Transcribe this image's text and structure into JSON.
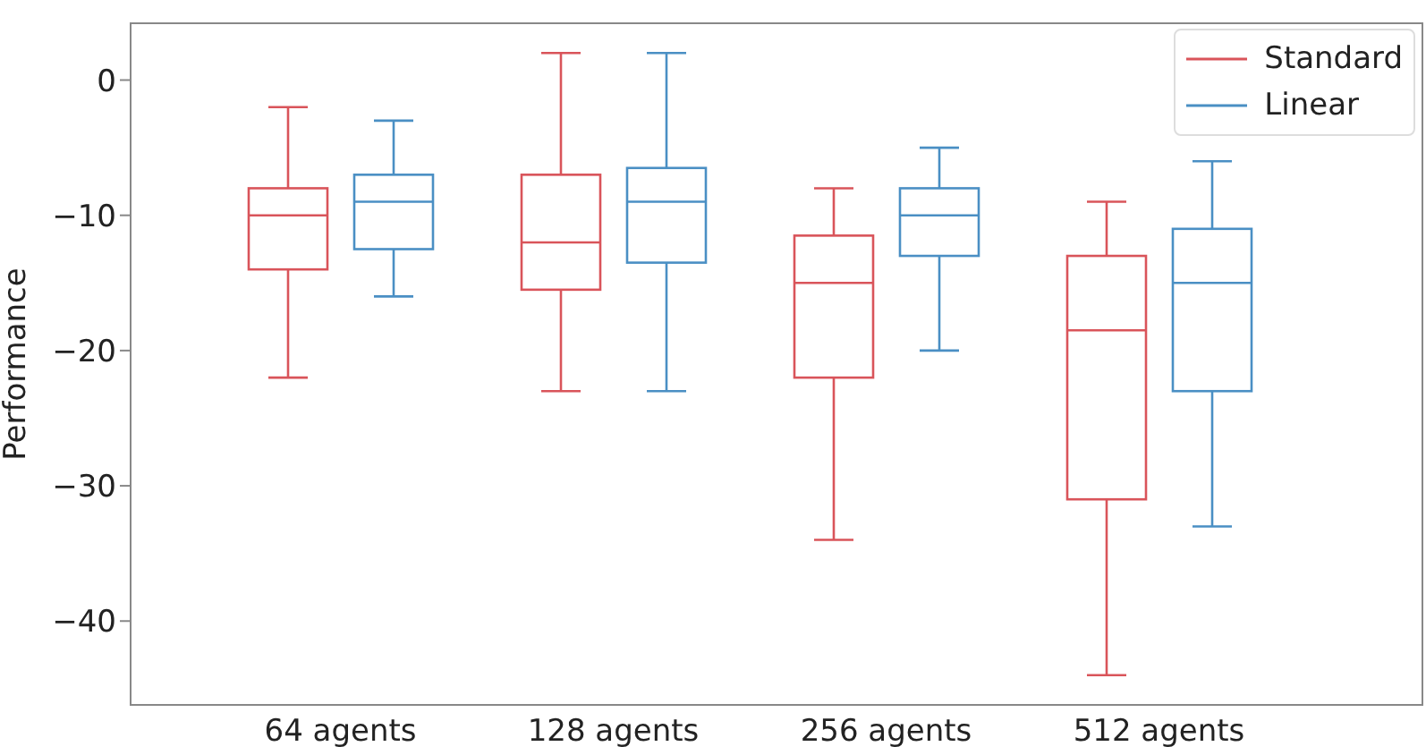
{
  "chart_data": {
    "type": "box",
    "ylabel": "Performance",
    "categories": [
      "64 agents",
      "128 agents",
      "256 agents",
      "512 agents"
    ],
    "ylim": [
      -46.2,
      4.2
    ],
    "yticks": [
      {
        "value": 0,
        "label": "0"
      },
      {
        "value": -10,
        "label": "−10"
      },
      {
        "value": -20,
        "label": "−20"
      },
      {
        "value": -30,
        "label": "−30"
      },
      {
        "value": -40,
        "label": "−40"
      }
    ],
    "legend": "top right",
    "series": [
      {
        "name": "Standard",
        "color": "#d9545a",
        "boxes": [
          {
            "low": -22,
            "q1": -14,
            "median": -10,
            "q3": -8,
            "high": -2
          },
          {
            "low": -23,
            "q1": -15.5,
            "median": -12,
            "q3": -7,
            "high": 2
          },
          {
            "low": -34,
            "q1": -22,
            "median": -15,
            "q3": -11.5,
            "high": -8
          },
          {
            "low": -44,
            "q1": -31,
            "median": -18.5,
            "q3": -13,
            "high": -9
          }
        ]
      },
      {
        "name": "Linear",
        "color": "#4a8fc4",
        "boxes": [
          {
            "low": -16,
            "q1": -12.5,
            "median": -9,
            "q3": -7,
            "high": -3
          },
          {
            "low": -23,
            "q1": -13.5,
            "median": -9,
            "q3": -6.5,
            "high": 2
          },
          {
            "low": -20,
            "q1": -13,
            "median": -10,
            "q3": -8,
            "high": -5
          },
          {
            "low": -33,
            "q1": -23,
            "median": -15,
            "q3": -11,
            "high": -6
          }
        ]
      }
    ]
  }
}
